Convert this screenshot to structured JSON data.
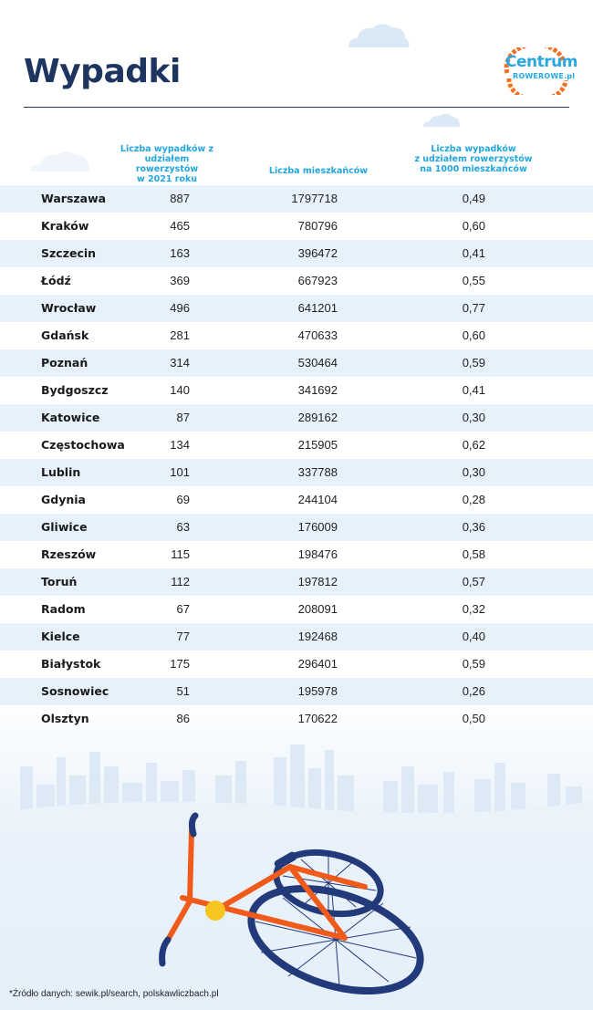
{
  "header": {
    "title": "Wypadki",
    "logo_line1": "Centrum",
    "logo_line2": "ROWEROWE.pl"
  },
  "columns": {
    "accidents": "Liczba wypadków z udziałem rowerzystów w 2021 roku",
    "accidents_lines": [
      "Liczba wypadków z",
      "udziałem rowerzystów",
      "w 2021 roku"
    ],
    "population": "Liczba mieszkańców",
    "rate": "Liczba wypadków z udziałem rowerzystów na 1000 mieszkańców",
    "rate_lines": [
      "Liczba wypadków",
      "z udziałem rowerzystów",
      "na 1000 mieszkańców"
    ]
  },
  "rows": [
    {
      "city": "Warszawa",
      "accidents": "887",
      "population": "1797718",
      "rate": "0,49"
    },
    {
      "city": "Kraków",
      "accidents": "465",
      "population": "780796",
      "rate": "0,60"
    },
    {
      "city": "Szczecin",
      "accidents": "163",
      "population": "396472",
      "rate": "0,41"
    },
    {
      "city": "Łódź",
      "accidents": "369",
      "population": "667923",
      "rate": "0,55"
    },
    {
      "city": "Wrocław",
      "accidents": "496",
      "population": "641201",
      "rate": "0,77"
    },
    {
      "city": "Gdańsk",
      "accidents": "281",
      "population": "470633",
      "rate": "0,60"
    },
    {
      "city": "Poznań",
      "accidents": "314",
      "population": "530464",
      "rate": "0,59"
    },
    {
      "city": "Bydgoszcz",
      "accidents": "140",
      "population": "341692",
      "rate": "0,41"
    },
    {
      "city": "Katowice",
      "accidents": "87",
      "population": "289162",
      "rate": "0,30"
    },
    {
      "city": "Częstochowa",
      "accidents": "134",
      "population": "215905",
      "rate": "0,62"
    },
    {
      "city": "Lublin",
      "accidents": "101",
      "population": "337788",
      "rate": "0,30"
    },
    {
      "city": "Gdynia",
      "accidents": "69",
      "population": "244104",
      "rate": "0,28"
    },
    {
      "city": "Gliwice",
      "accidents": "63",
      "population": "176009",
      "rate": "0,36"
    },
    {
      "city": "Rzeszów",
      "accidents": "115",
      "population": "198476",
      "rate": "0,58"
    },
    {
      "city": "Toruń",
      "accidents": "112",
      "population": "197812",
      "rate": "0,57"
    },
    {
      "city": "Radom",
      "accidents": "67",
      "population": "208091",
      "rate": "0,32"
    },
    {
      "city": "Kielce",
      "accidents": "77",
      "population": "192468",
      "rate": "0,40"
    },
    {
      "city": "Białystok",
      "accidents": "175",
      "population": "296401",
      "rate": "0,59"
    },
    {
      "city": "Sosnowiec",
      "accidents": "51",
      "population": "195978",
      "rate": "0,26"
    },
    {
      "city": "Olsztyn",
      "accidents": "86",
      "population": "170622",
      "rate": "0,50"
    }
  ],
  "footer": {
    "source": "*Źródło danych: sewik.pl/search, polskawliczbach.pl"
  },
  "colors": {
    "title": "#1e3560",
    "header_text": "#22a6dd",
    "stripe": "#e6f1fb",
    "logo_orange": "#f36f21",
    "bike_frame": "#f05a1a",
    "wheel": "#233a7a"
  },
  "icons": [
    "cloud-icon",
    "gear-logo-icon",
    "city-skyline-icon",
    "fallen-bicycle-icon"
  ]
}
